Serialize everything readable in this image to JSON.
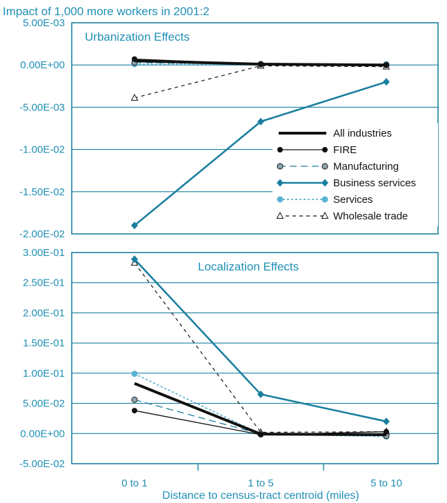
{
  "caption": "Impact of 1,000 more workers in 2001:2",
  "colors": {
    "axis": "#1a7f9f",
    "label": "#1f8fb5",
    "business": "#1a7f9f",
    "services": "#5ab3d3",
    "black": "#111111",
    "manufacturing_fill": "#8fa4ae"
  },
  "chart_data": [
    {
      "type": "line",
      "title": "Urbanization Effects",
      "categories": [
        "0 to 1",
        "1 to 5",
        "5 to 10"
      ],
      "ylim": [
        -0.02,
        0.005
      ],
      "yticks": [
        0.005,
        0,
        -0.005,
        -0.01,
        -0.015,
        -0.02
      ],
      "ytick_labels": [
        "5.00E-03",
        "0.00E+00",
        "-5.00E-03",
        "-1.00E-02",
        "-1.50E-02",
        "-2.00E-02"
      ],
      "grid": "horizontal",
      "legend_position": "right",
      "series": [
        {
          "name": "All industries",
          "values": [
            0.0005,
            0.0001,
            0.0
          ]
        },
        {
          "name": "FIRE",
          "values": [
            0.0007,
            0.0001,
            0.0
          ]
        },
        {
          "name": "Manufacturing",
          "values": [
            0.0003,
            0.0001,
            0.0
          ]
        },
        {
          "name": "Business services",
          "values": [
            -0.019,
            -0.0067,
            -0.002
          ]
        },
        {
          "name": "Services",
          "values": [
            0.0001,
            0.0001,
            0.0001
          ]
        },
        {
          "name": "Wholesale trade",
          "values": [
            -0.0039,
            -0.0001,
            -0.0002
          ]
        }
      ]
    },
    {
      "type": "line",
      "title": "Localization Effects",
      "categories": [
        "0 to 1",
        "1 to 5",
        "5 to 10"
      ],
      "xlabel": "Distance to census-tract centroid (miles)",
      "ylim": [
        -0.05,
        0.3
      ],
      "yticks": [
        0.3,
        0.25,
        0.2,
        0.15,
        0.1,
        0.05,
        0,
        -0.05
      ],
      "ytick_labels": [
        "3.00E-01",
        "2.50E-01",
        "2.00E-01",
        "1.50E-01",
        "1.00E-01",
        "5.00E-02",
        "0.00E+00",
        "-5.00E-02"
      ],
      "grid": "horizontal",
      "series": [
        {
          "name": "All industries",
          "values": [
            0.083,
            -0.001,
            -0.002
          ]
        },
        {
          "name": "FIRE",
          "values": [
            0.038,
            -0.002,
            0.003
          ]
        },
        {
          "name": "Manufacturing",
          "values": [
            0.056,
            -0.001,
            -0.004
          ]
        },
        {
          "name": "Business services",
          "values": [
            0.289,
            0.065,
            0.02
          ]
        },
        {
          "name": "Services",
          "values": [
            0.099,
            -0.001,
            -0.005
          ]
        },
        {
          "name": "Wholesale trade",
          "values": [
            0.283,
            0.002,
            0.003
          ]
        }
      ]
    }
  ]
}
